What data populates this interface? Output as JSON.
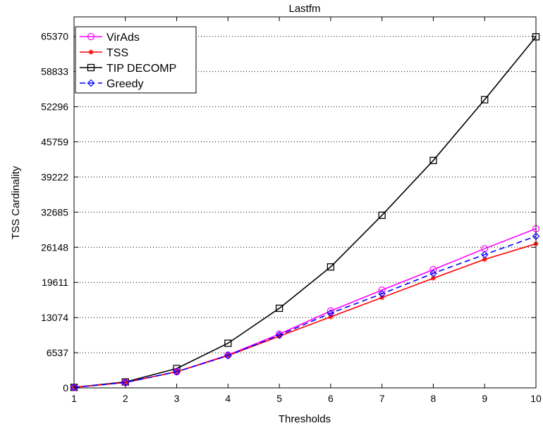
{
  "chart_data": {
    "type": "line",
    "title": "Lastfm",
    "xlabel": "Thresholds",
    "ylabel": "TSS Cardinality",
    "x": [
      1,
      2,
      3,
      4,
      5,
      6,
      7,
      8,
      9,
      10
    ],
    "xlim": [
      1,
      10
    ],
    "ylim": [
      0,
      69000
    ],
    "xticks": [
      1,
      2,
      3,
      4,
      5,
      6,
      7,
      8,
      9,
      10
    ],
    "yticks": [
      0,
      6537,
      13074,
      19611,
      26148,
      32685,
      39222,
      45759,
      52296,
      58833,
      65370
    ],
    "grid": "y-dotted",
    "legend_position": "top-left",
    "series": [
      {
        "name": "VirAds",
        "color": "#ff00ff",
        "marker": "circle",
        "dash": "solid",
        "values": [
          100,
          1000,
          3000,
          6100,
          10000,
          14300,
          18200,
          22000,
          25900,
          29600
        ]
      },
      {
        "name": "TSS",
        "color": "#ff0000",
        "marker": "asterisk",
        "dash": "solid",
        "values": [
          100,
          1000,
          3000,
          6000,
          9600,
          13200,
          16800,
          20400,
          23900,
          26800
        ]
      },
      {
        "name": "TIP DECOMP",
        "color": "#000000",
        "marker": "square",
        "dash": "solid",
        "values": [
          100,
          1100,
          3600,
          8300,
          14800,
          22500,
          32100,
          42300,
          53600,
          65300
        ]
      },
      {
        "name": "Greedy",
        "color": "#0000ff",
        "marker": "diamond",
        "dash": "dashed",
        "values": [
          100,
          1000,
          3000,
          6000,
          9800,
          13900,
          17500,
          21300,
          24800,
          28200
        ]
      }
    ]
  }
}
